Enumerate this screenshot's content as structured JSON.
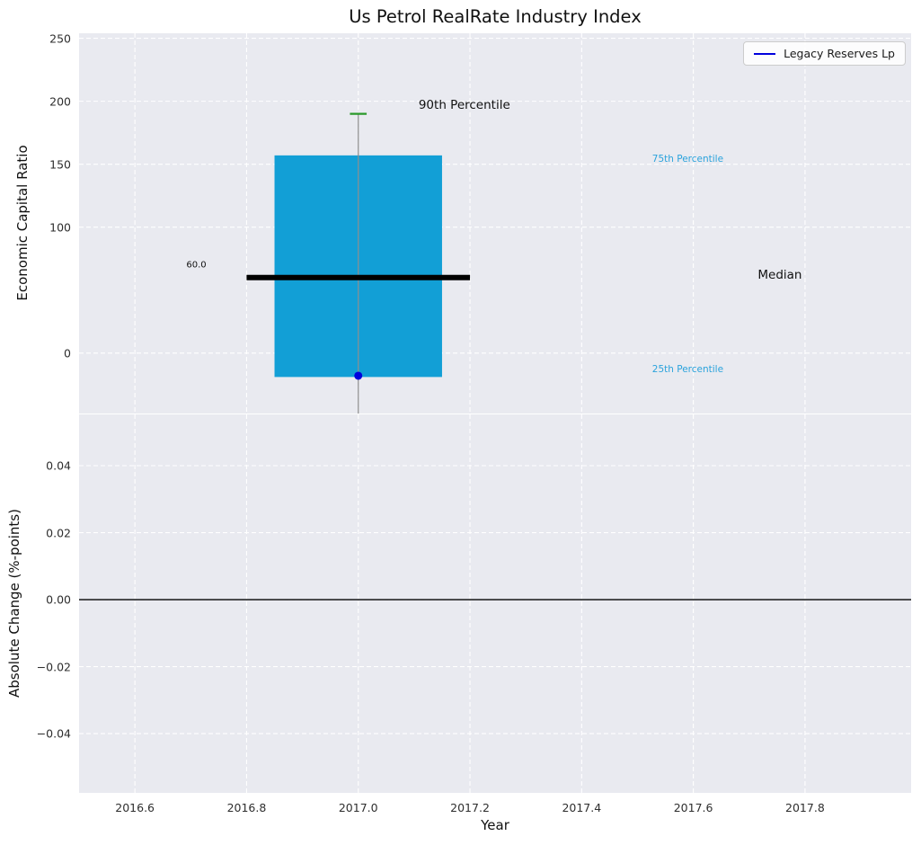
{
  "title": "Us Petrol RealRate Industry Index",
  "xlabel": "Year",
  "legend": {
    "label": "Legacy Reserves Lp"
  },
  "axes": {
    "xlim": [
      2016.5,
      2017.99
    ],
    "xticks": [
      2016.6,
      2016.8,
      2017.0,
      2017.2,
      2017.4,
      2017.6,
      2017.8
    ],
    "xtick_labels": [
      "2016.6",
      "2016.8",
      "2017.0",
      "2017.2",
      "2017.4",
      "2017.6",
      "2017.8"
    ],
    "top": {
      "ylabel": "Economic Capital Ratio",
      "ylim": [
        -48,
        254
      ],
      "yticks": [
        250,
        200,
        150,
        100,
        0
      ],
      "ytick_labels": [
        "250",
        "200",
        "150",
        "100",
        "0"
      ],
      "grid": "white-dashed"
    },
    "bottom": {
      "ylabel": "Absolute Change (%-points)",
      "ylim": [
        -0.0577,
        0.0553
      ],
      "yticks": [
        0.04,
        0.02,
        0,
        -0.02,
        -0.04
      ],
      "ytick_labels": [
        "0.04",
        "0.02",
        "0.00",
        "−0.02",
        "−0.04"
      ],
      "zero_line": 0,
      "grid": "white-dashed"
    }
  },
  "chart_data": {
    "type": "boxplot",
    "title": "Us Petrol RealRate Industry Index",
    "x": 2017.0,
    "percentiles": {
      "p90": 190,
      "p75": 157,
      "median": 60.0,
      "p25": -19,
      "whisker_low": -48
    },
    "box_geometry": {
      "box_left": 2016.85,
      "box_right": 2017.15,
      "median_left": 2016.8,
      "median_right": 2017.2,
      "cap_half_width": 0.015
    },
    "company_point": {
      "name": "Legacy Reserves Lp",
      "x": 2017.0,
      "y": -18
    },
    "annotations": [
      {
        "text": "90th Percentile",
        "x": 2017.19,
        "y": 197,
        "color": "#111111",
        "size": 13.5
      },
      {
        "text": "75th Percentile",
        "x": 2017.59,
        "y": 154,
        "color": "#2ba3dc",
        "size": 10.5
      },
      {
        "text": "Median",
        "x": 2017.755,
        "y": 62,
        "color": "#111111",
        "size": 13.5
      },
      {
        "text": "25th Percentile",
        "x": 2017.59,
        "y": -13,
        "color": "#2ba3dc",
        "size": 10.5
      },
      {
        "text": "60.0",
        "x": 2016.71,
        "y": 70,
        "color": "#111111",
        "size": 10
      }
    ],
    "colors": {
      "box_fill": "#129fd6",
      "median_line": "#000000",
      "whisker": "#8f8f8f",
      "cap": "#2a992a",
      "company_point": "#0000dd",
      "legend_line": "#0000dd",
      "axes_background": "#e9eaf0",
      "grid": "#ffffff",
      "zero_line": "#000000"
    }
  }
}
